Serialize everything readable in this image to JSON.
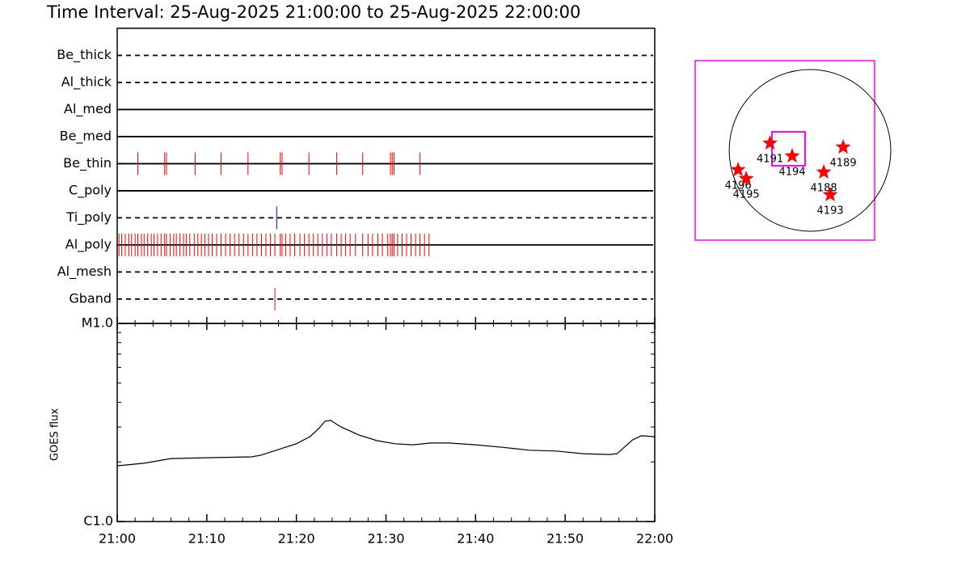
{
  "chart_data": [
    {
      "type": "event",
      "title": "Time Interval: 25-Aug-2025 21:00:00 to 25-Aug-2025 22:00:00",
      "xlim": [
        0,
        60
      ],
      "series": [
        {
          "name": "Be_thick",
          "style": "dashed",
          "color": "#ff0000",
          "values": []
        },
        {
          "name": "Al_thick",
          "style": "dashed",
          "color": "#ff0000",
          "values": []
        },
        {
          "name": "Al_med",
          "style": "solid",
          "color": "#ff0000",
          "values": []
        },
        {
          "name": "Be_med",
          "style": "solid",
          "color": "#ff0000",
          "values": []
        },
        {
          "name": "Be_thin",
          "style": "solid",
          "color": "#ff0000",
          "values": [
            2.3,
            5.3,
            5.5,
            8.7,
            11.6,
            14.6,
            18.2,
            18.4,
            21.4,
            24.5,
            27.4,
            30.5,
            30.7,
            30.9,
            33.8
          ]
        },
        {
          "name": "C_poly",
          "style": "solid",
          "color": "#ff0000",
          "values": []
        },
        {
          "name": "Ti_poly",
          "style": "dashed",
          "color": "#0000cc",
          "values": [
            17.8
          ]
        },
        {
          "name": "Al_poly",
          "style": "solid",
          "color": "#ff0000",
          "values": [
            0.2,
            0.5,
            0.9,
            1.3,
            1.6,
            2.0,
            2.3,
            2.7,
            3.0,
            3.4,
            3.8,
            4.1,
            4.5,
            4.9,
            5.3,
            5.5,
            5.9,
            6.3,
            6.6,
            7.0,
            7.4,
            7.7,
            8.1,
            8.6,
            9.0,
            9.4,
            9.8,
            10.2,
            10.6,
            11.1,
            11.6,
            12.1,
            12.6,
            13.1,
            13.6,
            14.1,
            14.6,
            15.1,
            15.6,
            16.1,
            16.6,
            17.1,
            17.6,
            18.2,
            18.4,
            18.8,
            19.3,
            19.8,
            20.4,
            20.9,
            21.4,
            21.9,
            22.4,
            22.9,
            23.4,
            23.9,
            24.5,
            25.0,
            25.5,
            26.0,
            26.6,
            27.4,
            28.0,
            28.5,
            29.1,
            29.6,
            30.2,
            30.5,
            30.7,
            30.9,
            31.3,
            31.8,
            32.3,
            32.8,
            33.3,
            33.8,
            34.3,
            34.8
          ]
        },
        {
          "name": "Al_mesh",
          "style": "dashed",
          "color": "#ff0000",
          "values": []
        },
        {
          "name": "Gband",
          "style": "dashed",
          "color": "#ff0000",
          "values": [
            17.6
          ]
        }
      ]
    },
    {
      "type": "line",
      "ylabel": "GOES flux",
      "log_y": true,
      "color": "#000000",
      "x": [
        0,
        3,
        6,
        10,
        15,
        16,
        18,
        20,
        21.5,
        22.5,
        23.2,
        23.8,
        25,
        27,
        29,
        31,
        33,
        35,
        37,
        40,
        43,
        46,
        49,
        52,
        55,
        55.8,
        56.5,
        57.5,
        58.5,
        60
      ],
      "values": [
        1.91e-06,
        1.97e-06,
        2.08e-06,
        2.1e-06,
        2.12e-06,
        2.16e-06,
        2.31e-06,
        2.47e-06,
        2.68e-06,
        2.95e-06,
        3.21e-06,
        3.24e-06,
        3e-06,
        2.73e-06,
        2.56e-06,
        2.47e-06,
        2.44e-06,
        2.49e-06,
        2.49e-06,
        2.44e-06,
        2.37e-06,
        2.29e-06,
        2.27e-06,
        2.2e-06,
        2.18e-06,
        2.2e-06,
        2.35e-06,
        2.58e-06,
        2.71e-06,
        2.68e-06
      ],
      "xlim": [
        0,
        60
      ],
      "xticks": [
        {
          "value": 0,
          "label": "21:00"
        },
        {
          "value": 10,
          "label": "21:10"
        },
        {
          "value": 20,
          "label": "21:20"
        },
        {
          "value": 30,
          "label": "21:30"
        },
        {
          "value": 40,
          "label": "21:40"
        },
        {
          "value": 50,
          "label": "21:50"
        },
        {
          "value": 60,
          "label": "22:00"
        }
      ],
      "xminor": [
        2,
        4,
        6,
        8,
        12,
        14,
        16,
        18,
        22,
        24,
        26,
        28,
        32,
        34,
        36,
        38,
        42,
        44,
        46,
        48,
        52,
        54,
        56,
        58
      ],
      "ylim": [
        1e-06,
        1e-05
      ],
      "yticks": [
        {
          "value": 1e-06,
          "label": "C1.0"
        },
        {
          "value": 1e-05,
          "label": "M1.0"
        }
      ],
      "yminor": [
        2e-06,
        3e-06,
        4e-06,
        5e-06,
        6e-06,
        7e-06,
        8e-06,
        9e-06
      ]
    },
    {
      "type": "map",
      "xlim": [
        -1350,
        760
      ],
      "ylim": [
        -1055,
        1055
      ],
      "frame_color": "#ff00ff",
      "star_color": "#ff0000",
      "disk_radius": 950,
      "fov_x": [
        -447,
        -57
      ],
      "fov_y": [
        -180,
        218
      ],
      "labels": [
        "4191",
        "4194",
        "4189",
        "4188",
        "4193",
        "4196",
        "4195"
      ],
      "x": [
        -470,
        -209,
        390,
        162,
        238,
        -845,
        -750
      ],
      "y": [
        85,
        -66,
        38,
        -256,
        -522,
        -228,
        -333
      ]
    }
  ]
}
